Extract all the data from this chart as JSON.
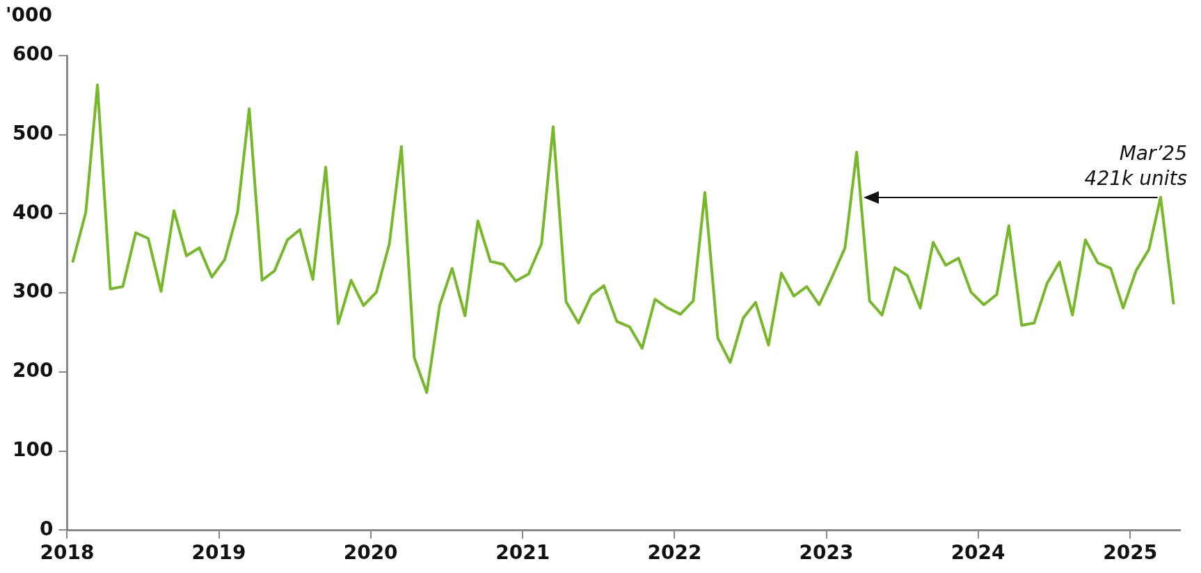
{
  "chart_data": {
    "type": "line",
    "ylabel": "'000",
    "x": [
      "2018-01-15",
      "2018-02-15",
      "2018-03-15",
      "2018-04-15",
      "2018-05-15",
      "2018-06-15",
      "2018-07-15",
      "2018-08-15",
      "2018-09-15",
      "2018-10-15",
      "2018-11-15",
      "2018-12-15",
      "2019-01-15",
      "2019-02-15",
      "2019-03-15",
      "2019-04-15",
      "2019-05-15",
      "2019-06-15",
      "2019-07-15",
      "2019-08-15",
      "2019-09-15",
      "2019-10-15",
      "2019-11-15",
      "2019-12-15",
      "2020-01-15",
      "2020-02-15",
      "2020-03-15",
      "2020-04-15",
      "2020-05-15",
      "2020-06-15",
      "2020-07-15",
      "2020-08-15",
      "2020-09-15",
      "2020-10-15",
      "2020-11-15",
      "2020-12-15",
      "2021-01-15",
      "2021-02-15",
      "2021-03-15",
      "2021-04-15",
      "2021-05-15",
      "2021-06-15",
      "2021-07-15",
      "2021-08-15",
      "2021-09-15",
      "2021-10-15",
      "2021-11-15",
      "2021-12-15",
      "2022-01-15",
      "2022-02-15",
      "2022-03-15",
      "2022-04-15",
      "2022-05-15",
      "2022-06-15",
      "2022-07-15",
      "2022-08-15",
      "2022-09-15",
      "2022-10-15",
      "2022-11-15",
      "2022-12-15",
      "2023-01-15",
      "2023-02-15",
      "2023-03-15",
      "2023-04-15",
      "2023-05-15",
      "2023-06-15",
      "2023-07-15",
      "2023-08-15",
      "2023-09-15",
      "2023-10-15",
      "2023-11-15",
      "2023-12-15",
      "2024-01-15",
      "2024-02-15",
      "2024-03-15",
      "2024-04-15",
      "2024-05-15",
      "2024-06-15",
      "2024-07-15",
      "2024-08-15",
      "2024-09-15",
      "2024-10-15",
      "2024-11-15",
      "2024-12-15",
      "2025-01-15",
      "2025-02-15",
      "2025-03-15",
      "2025-04-15"
    ],
    "series": [
      {
        "color": "#77b82a",
        "values": [
          340,
          402,
          563,
          305,
          308,
          376,
          369,
          302,
          404,
          347,
          357,
          320,
          342,
          402,
          533,
          316,
          328,
          367,
          380,
          317,
          459,
          261,
          316,
          284,
          301,
          362,
          485,
          218,
          174,
          284,
          331,
          271,
          391,
          340,
          336,
          315,
          324,
          362,
          510,
          289,
          262,
          297,
          309,
          264,
          257,
          230,
          292,
          281,
          273,
          290,
          427,
          243,
          212,
          268,
          288,
          234,
          325,
          296,
          308,
          285,
          320,
          357,
          478,
          290,
          272,
          332,
          322,
          281,
          364,
          335,
          344,
          301,
          285,
          298,
          385,
          259,
          262,
          312,
          339,
          272,
          367,
          338,
          331,
          281,
          328,
          355,
          421,
          287
        ]
      }
    ],
    "xlim": [
      "2018-01-01",
      "2025-05-01"
    ],
    "xticks": [
      "2018",
      "2019",
      "2020",
      "2021",
      "2022",
      "2023",
      "2024",
      "2025"
    ],
    "ylim": [
      0,
      600
    ],
    "yticks": [
      0,
      100,
      200,
      300,
      400,
      500,
      600
    ],
    "grid": false,
    "legend": false,
    "marker": "none",
    "line_style": "solid",
    "annotations": [
      {
        "text": "Mar’25\n421k units",
        "x": "2025-03-15",
        "y": 421
      }
    ]
  }
}
